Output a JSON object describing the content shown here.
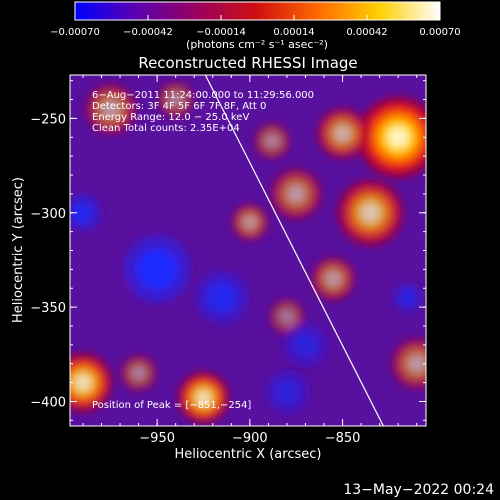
{
  "chart_data": {
    "type": "heatmap",
    "title": "Reconstructed RHESSI Image",
    "xlabel": "Heliocentric X (arcsec)",
    "ylabel": "Heliocentric Y (arcsec)",
    "xlim": [
      -997,
      -805
    ],
    "ylim": [
      -413,
      -227
    ],
    "x_ticks": [
      -950,
      -900,
      -850
    ],
    "x_tick_labels": [
      "−950",
      "−900",
      "−850"
    ],
    "y_ticks": [
      -250,
      -300,
      -350,
      -400
    ],
    "y_tick_labels": [
      "−250",
      "−300",
      "−350",
      "−400"
    ],
    "colorbar": {
      "min": -0.0007,
      "max": 0.0007,
      "ticks": [
        -0.0007,
        -0.00042,
        -0.00014,
        0.00014,
        0.00042,
        0.0007
      ],
      "tick_labels": [
        "−0.00070",
        "−0.00042",
        "−0.00014",
        "0.00014",
        "0.00042",
        "0.00070"
      ],
      "label": "(photons cm⁻² s⁻¹ asec⁻²)",
      "colors": [
        "#0000ff",
        "#5a00b0",
        "#9a0060",
        "#d01010",
        "#ff6a00",
        "#ffd000",
        "#ffffff"
      ]
    },
    "annotations": [
      "6−Aug−2011 11:24:00.000 to 11:29:56.000",
      "Detectors: 3F 4F 5F 6F 7F 8F, Att 0",
      "Energy Range: 12.0 − 25.0 keV",
      "Clean    Total counts: 2.35E+04"
    ],
    "peak_label": "Position of Peak = [−851,−254]",
    "peak": [
      -851,
      -254
    ],
    "limb_line": [
      [
        -924,
        -227
      ],
      [
        -828,
        -413
      ]
    ],
    "hot_spots": [
      {
        "x": -820,
        "y": -260,
        "s": 22,
        "a": 1.0
      },
      {
        "x": -850,
        "y": -258,
        "s": 14,
        "a": 0.7
      },
      {
        "x": -835,
        "y": -300,
        "s": 18,
        "a": 0.8
      },
      {
        "x": -855,
        "y": -335,
        "s": 12,
        "a": 0.6
      },
      {
        "x": -875,
        "y": -290,
        "s": 14,
        "a": 0.6
      },
      {
        "x": -900,
        "y": -305,
        "s": 10,
        "a": 0.6
      },
      {
        "x": -888,
        "y": -262,
        "s": 10,
        "a": 0.5
      },
      {
        "x": -975,
        "y": -245,
        "s": 14,
        "a": 0.6
      },
      {
        "x": -940,
        "y": -240,
        "s": 10,
        "a": 0.5
      },
      {
        "x": -990,
        "y": -390,
        "s": 16,
        "a": 0.9
      },
      {
        "x": -925,
        "y": -398,
        "s": 14,
        "a": 0.9
      },
      {
        "x": -960,
        "y": -385,
        "s": 10,
        "a": 0.5
      },
      {
        "x": -960,
        "y": -335,
        "s": 8,
        "a": 0.4
      },
      {
        "x": -810,
        "y": -380,
        "s": 14,
        "a": 0.6
      },
      {
        "x": -880,
        "y": -355,
        "s": 10,
        "a": 0.45
      }
    ],
    "cold_spots": [
      {
        "x": -950,
        "y": -330,
        "s": 18,
        "a": 1.0
      },
      {
        "x": -990,
        "y": -300,
        "s": 10,
        "a": 0.8
      },
      {
        "x": -915,
        "y": -345,
        "s": 14,
        "a": 0.8
      },
      {
        "x": -870,
        "y": -370,
        "s": 12,
        "a": 0.6
      },
      {
        "x": -815,
        "y": -345,
        "s": 8,
        "a": 0.7
      },
      {
        "x": -880,
        "y": -395,
        "s": 12,
        "a": 0.6
      }
    ]
  },
  "timestamp": "13−May−2022 00:24"
}
